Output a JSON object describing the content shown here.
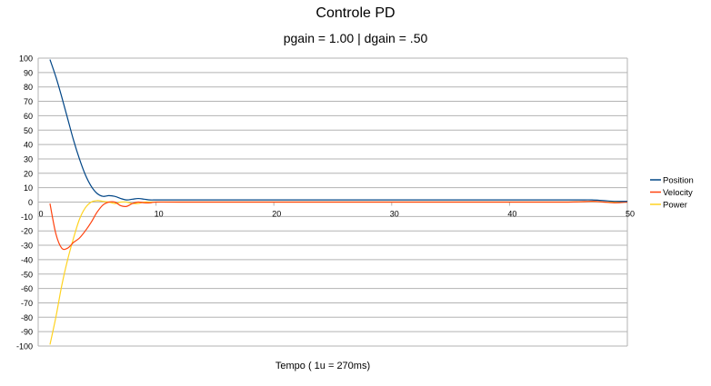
{
  "chart_data": {
    "type": "line",
    "title": "Controle PD",
    "subtitle": "pgain = 1.00 | dgain = .50",
    "xlabel": "Tempo  ( 1u = 270ms)",
    "ylabel": "",
    "xlim": [
      0,
      50
    ],
    "ylim": [
      -100,
      100
    ],
    "x_ticks": [
      0,
      10,
      20,
      30,
      40,
      50
    ],
    "y_ticks": [
      100,
      90,
      80,
      70,
      60,
      50,
      40,
      30,
      20,
      10,
      0,
      -10,
      -20,
      -30,
      -40,
      -50,
      -60,
      -70,
      -80,
      -90,
      -100
    ],
    "grid": "horizontal",
    "legend_position": "right",
    "series": [
      {
        "name": "Position",
        "color": "#004586",
        "x": [
          1,
          1.5,
          2,
          2.5,
          3,
          3.5,
          4,
          4.5,
          5,
          5.5,
          6,
          6.5,
          7,
          7.5,
          8,
          8.5,
          9,
          9.5,
          10,
          11,
          12,
          15,
          20,
          25,
          30,
          35,
          40,
          45,
          46,
          47,
          48,
          49,
          50
        ],
        "y": [
          99,
          87,
          73,
          58,
          43,
          30,
          19,
          11,
          6,
          4,
          4.5,
          4,
          2.5,
          1.5,
          2,
          2.5,
          2,
          1.5,
          1.5,
          1.5,
          1.5,
          1.5,
          1.5,
          1.5,
          1.5,
          1.5,
          1.5,
          1.5,
          1.5,
          1.5,
          1,
          0.5,
          0.5
        ]
      },
      {
        "name": "Velocity",
        "color": "#ff420e",
        "x": [
          1,
          1.5,
          2,
          2.5,
          3,
          3.5,
          4,
          4.5,
          5,
          5.5,
          6,
          6.5,
          7,
          7.5,
          8,
          8.5,
          9,
          9.5,
          10,
          12,
          20,
          30,
          40,
          45,
          47,
          48,
          49,
          50
        ],
        "y": [
          -1,
          -22,
          -32,
          -32,
          -28,
          -25,
          -20,
          -14,
          -7,
          -2,
          0,
          0,
          -2.5,
          -3,
          -1,
          0,
          -0.5,
          -0.5,
          0,
          0,
          0,
          0,
          0,
          0,
          0.5,
          0,
          -0.5,
          0
        ]
      },
      {
        "name": "Power",
        "color": "#ffd320",
        "x": [
          1,
          1.5,
          2,
          2.5,
          3,
          3.5,
          4,
          4.5,
          5,
          5.5,
          6,
          6.5,
          7,
          7.5,
          8,
          8.5,
          9,
          9.5,
          10,
          12,
          20,
          30,
          40,
          45,
          47,
          48,
          49,
          50
        ],
        "y": [
          -99,
          -80,
          -58,
          -40,
          -25,
          -12,
          -4,
          0,
          1,
          0.5,
          0,
          -1,
          0,
          0,
          -1,
          -1,
          0,
          0,
          0,
          0,
          0,
          0,
          0,
          0,
          0.5,
          0,
          0,
          0
        ]
      }
    ]
  }
}
